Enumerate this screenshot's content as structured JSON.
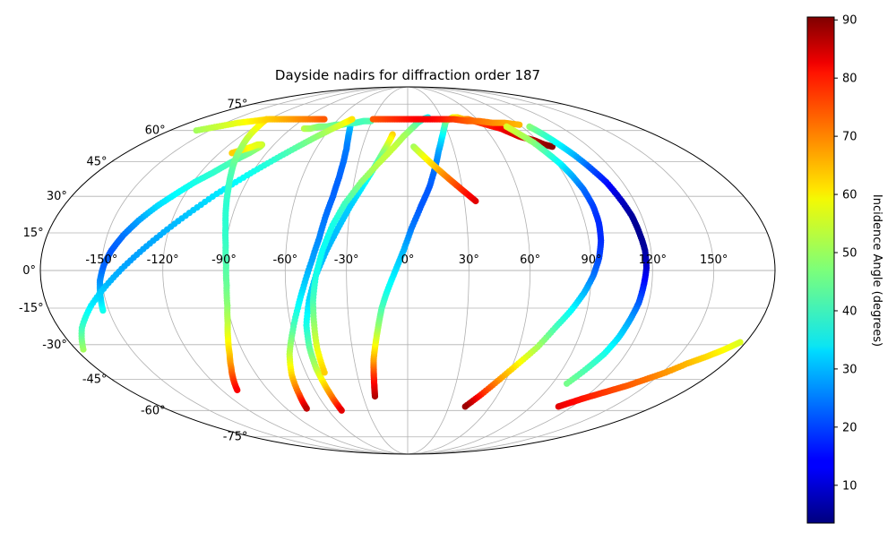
{
  "chart_data": {
    "type": "scatter",
    "projection": "mollweide",
    "title": "Dayside nadirs for diffraction order 187",
    "xlabel": "",
    "ylabel": "",
    "grid": true,
    "x_ticks": [
      "-150°",
      "-120°",
      "-90°",
      "-60°",
      "-30°",
      "0°",
      "30°",
      "60°",
      "90°",
      "120°",
      "150°"
    ],
    "x_tick_values": [
      -150,
      -120,
      -90,
      -60,
      -30,
      0,
      30,
      60,
      90,
      120,
      150
    ],
    "y_ticks": [
      "75°",
      "60°",
      "45°",
      "30°",
      "15°",
      "0°",
      "-15°",
      "-30°",
      "-45°",
      "-60°",
      "-75°"
    ],
    "y_tick_values": [
      75,
      60,
      45,
      30,
      15,
      0,
      -15,
      -30,
      -45,
      -60,
      -75
    ],
    "xlim": [
      -180,
      180
    ],
    "ylim": [
      -90,
      90
    ],
    "colormap": "jet",
    "colorbar": {
      "label": "Incidence Angle (degrees)",
      "ticks": [
        "10",
        "20",
        "30",
        "40",
        "50",
        "60",
        "70",
        "80",
        "90"
      ],
      "tick_values": [
        10,
        20,
        30,
        40,
        50,
        60,
        70,
        80,
        90
      ],
      "range": [
        3.5,
        90.5
      ],
      "placement": "right"
    },
    "series": [
      {
        "lon": [
          -22,
          -21,
          -20,
          -19,
          -17,
          -15,
          -13,
          -10,
          -6,
          -2,
          2,
          7,
          12,
          16,
          20,
          24,
          28,
          32,
          36,
          40,
          44,
          48,
          52,
          56,
          60,
          64,
          68,
          72,
          76,
          80,
          84,
          88,
          92,
          96
        ],
        "lat": [
          -53,
          -48,
          -42,
          -36,
          -29,
          -22,
          -15,
          -8,
          0,
          8,
          17,
          26,
          34,
          42,
          50,
          56,
          61,
          65,
          66,
          67,
          67,
          66,
          66,
          65,
          64,
          63,
          62,
          61,
          59,
          57,
          56,
          55,
          53,
          52
        ],
        "incidence": [
          87,
          82,
          75,
          66,
          57,
          49,
          43,
          38,
          34,
          30,
          25,
          22,
          22,
          24,
          28,
          33,
          39,
          45,
          50,
          56,
          60,
          64,
          68,
          71,
          74,
          76,
          78,
          80,
          82,
          83,
          85,
          86,
          88,
          90
        ]
      },
      {
        "lon": [
          -11,
          -13,
          -16,
          -20,
          -25,
          -30,
          -35,
          -40,
          -45,
          -49,
          -52,
          -53,
          -53,
          -52,
          -51,
          -50
        ],
        "lat": [
          58,
          54,
          49,
          42,
          34,
          26,
          17,
          8,
          -2,
          -12,
          -22,
          -31,
          -40,
          -47,
          -54,
          -60
        ],
        "incidence": [
          62,
          56,
          48,
          40,
          35,
          32,
          31,
          30,
          31,
          33,
          38,
          44,
          51,
          60,
          70,
          82
        ]
      },
      {
        "lon": [
          18,
          13,
          8,
          3,
          -3,
          -10,
          -18,
          -26,
          -33,
          -38,
          -42,
          -45,
          -47,
          -48,
          -49,
          -49
        ],
        "lat": [
          67,
          66,
          64,
          61,
          57,
          51,
          44,
          36,
          27,
          18,
          8,
          -2,
          -12,
          -22,
          -32,
          -42
        ],
        "incidence": [
          35,
          38,
          42,
          46,
          50,
          53,
          52,
          48,
          42,
          38,
          37,
          38,
          42,
          49,
          56,
          62
        ]
      },
      {
        "lon": [
          -48,
          -46,
          -44,
          -42,
          -40,
          -39,
          -39,
          -40,
          -42,
          -44,
          -47,
          -51,
          -55,
          -60,
          -65,
          -69,
          -72,
          -75
        ],
        "lat": [
          65,
          63,
          60,
          56,
          51,
          45,
          38,
          30,
          22,
          13,
          4,
          -6,
          -15,
          -25,
          -34,
          -43,
          -52,
          -59
        ],
        "incidence": [
          42,
          36,
          30,
          27,
          25,
          24,
          23,
          23,
          24,
          26,
          28,
          32,
          37,
          44,
          52,
          61,
          72,
          85
        ]
      },
      {
        "lon": [
          -80,
          -75,
          -70,
          -64,
          -58,
          -53,
          -48,
          -43,
          -37,
          -31
        ],
        "lat": [
          61,
          61,
          62,
          62,
          63,
          63,
          64,
          64,
          65,
          65
        ],
        "incidence": [
          52,
          50,
          48,
          47,
          45,
          44,
          43,
          42,
          42,
          43
        ]
      },
      {
        "lon": [
          4,
          8,
          12,
          16,
          20,
          24,
          28,
          32,
          36
        ],
        "lat": [
          52,
          49,
          46,
          43,
          40,
          37,
          34,
          31,
          28
        ],
        "incidence": [
          50,
          54,
          58,
          62,
          66,
          70,
          74,
          78,
          82
        ]
      },
      {
        "lon": [
          -153,
          -152,
          -151,
          -149,
          -146,
          -142,
          -137,
          -131,
          -125,
          -119,
          -113,
          -108,
          -104,
          -101,
          -99,
          -98,
          -98,
          -99,
          -101,
          -103,
          -106,
          -109,
          -112
        ],
        "lat": [
          -16,
          -10,
          -4,
          2,
          8,
          14,
          20,
          26,
          31,
          36,
          40,
          44,
          47,
          49,
          51,
          52,
          53,
          53,
          53,
          52,
          51,
          50,
          49
        ],
        "incidence": [
          38,
          32,
          27,
          23,
          22,
          24,
          28,
          33,
          36,
          38,
          40,
          42,
          44,
          46,
          48,
          50,
          52,
          54,
          55,
          56,
          58,
          60,
          62
        ]
      },
      {
        "lon": [
          -176,
          -168,
          -158,
          -147,
          -136,
          -125,
          -114,
          -103,
          -92,
          -82,
          -73,
          -65,
          -58,
          -52,
          -48
        ],
        "lat": [
          -32,
          -23,
          -14,
          -5,
          4,
          13,
          22,
          31,
          39,
          46,
          52,
          57,
          61,
          64,
          66
        ],
        "incidence": [
          50,
          42,
          35,
          30,
          28,
          29,
          31,
          34,
          37,
          40,
          44,
          48,
          52,
          56,
          60
        ]
      },
      {
        "lon": [
          -122,
          -118,
          -114,
          -110,
          -106,
          -102,
          -98,
          -95,
          -92,
          -90,
          -89,
          -89,
          -90,
          -92,
          -95,
          -98,
          -102,
          -106,
          -110
        ],
        "lat": [
          66,
          62,
          57,
          52,
          46,
          40,
          33,
          26,
          18,
          10,
          2,
          -6,
          -14,
          -21,
          -28,
          -34,
          -40,
          -45,
          -50
        ],
        "incidence": [
          62,
          58,
          54,
          50,
          46,
          43,
          41,
          40,
          40,
          41,
          43,
          45,
          48,
          52,
          57,
          62,
          68,
          74,
          80
        ]
      },
      {
        "lon": [
          -160,
          -150,
          -140,
          -130,
          -120,
          -110,
          -100,
          -90,
          -80,
          -72
        ],
        "lat": [
          60,
          62,
          64,
          65,
          66,
          66,
          66,
          66,
          66,
          66
        ],
        "incidence": [
          50,
          53,
          56,
          59,
          62,
          64,
          66,
          68,
          70,
          72
        ]
      },
      {
        "lon": [
          -30,
          -20,
          -10,
          0,
          10,
          20,
          30,
          40,
          50,
          60,
          70,
          80,
          90
        ],
        "lat": [
          66,
          66,
          66,
          66,
          66,
          66,
          66,
          66,
          65,
          65,
          64,
          64,
          63
        ],
        "incidence": [
          72,
          74,
          76,
          78,
          80,
          80,
          78,
          75,
          72,
          70,
          68,
          66,
          64
        ]
      },
      {
        "lon": [
          96,
          99,
          102,
          105,
          108,
          111,
          113,
          115,
          116,
          117,
          117,
          116,
          115,
          113,
          111,
          108,
          104,
          99
        ],
        "lat": [
          62,
          58,
          53,
          48,
          42,
          36,
          29,
          22,
          15,
          8,
          1,
          -6,
          -13,
          -20,
          -27,
          -34,
          -40,
          -47
        ],
        "incidence": [
          48,
          42,
          36,
          30,
          22,
          16,
          10,
          6,
          5,
          6,
          10,
          16,
          22,
          28,
          33,
          38,
          42,
          46
        ]
      },
      {
        "lon": [
          78,
          82,
          86,
          89,
          92,
          94,
          96,
          97,
          97,
          96,
          94,
          91,
          87,
          82,
          76,
          70,
          63,
          56,
          49,
          42
        ],
        "lat": [
          62,
          58,
          54,
          49,
          44,
          39,
          33,
          26,
          19,
          12,
          5,
          -2,
          -9,
          -16,
          -23,
          -31,
          -38,
          -45,
          -52,
          -58
        ],
        "incidence": [
          55,
          52,
          48,
          42,
          36,
          30,
          24,
          20,
          18,
          18,
          20,
          24,
          30,
          36,
          42,
          50,
          58,
          66,
          76,
          88
        ]
      },
      {
        "lon": [
          110,
          115,
          120,
          126,
          132,
          138,
          145,
          152,
          159,
          166,
          172,
          177
        ],
        "lat": [
          -58,
          -56,
          -54,
          -52,
          -50,
          -48,
          -45,
          -42,
          -38,
          -35,
          -32,
          -29
        ],
        "incidence": [
          82,
          80,
          78,
          76,
          74,
          72,
          70,
          67,
          64,
          61,
          58,
          55
        ]
      }
    ]
  }
}
